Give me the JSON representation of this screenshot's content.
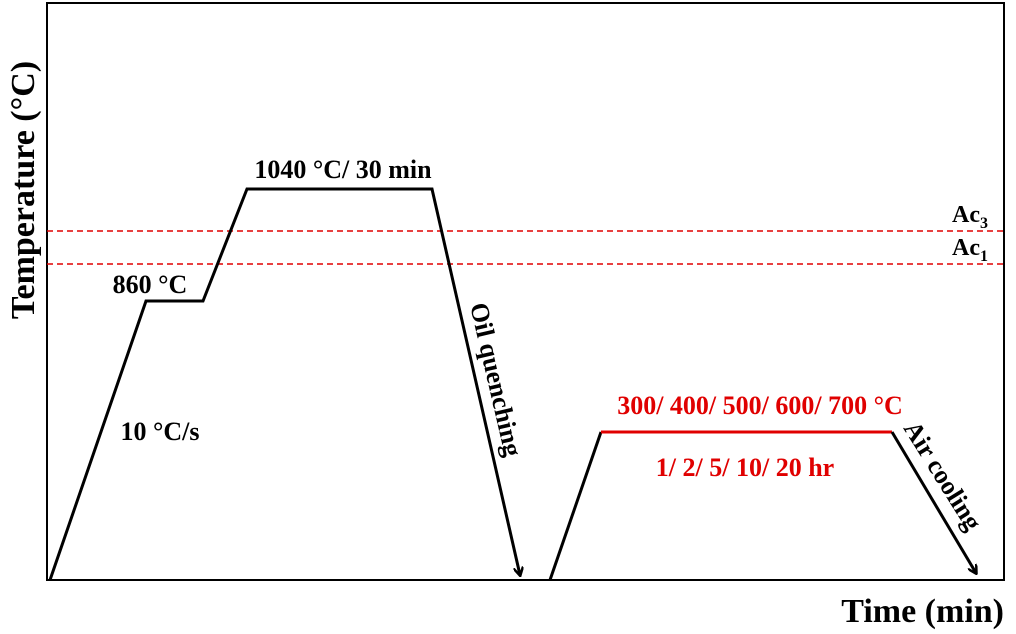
{
  "axes": {
    "y_label": "Temperature (°C)",
    "x_label": "Time (min)"
  },
  "critical_lines": [
    {
      "symbol": "Ac",
      "subscript": "3"
    },
    {
      "symbol": "Ac",
      "subscript": "1"
    }
  ],
  "stages": {
    "preheat_rate": "10 °C/s",
    "preheat_hold": "860 °C",
    "austenitize": "1040 °C/ 30 min",
    "quench": "Oil quenching",
    "temper_temps": "300/ 400/ 500/ 600/ 700 °C",
    "temper_times": "1/ 2/ 5/ 10/ 20 hr",
    "cooling": "Air cooling"
  }
}
